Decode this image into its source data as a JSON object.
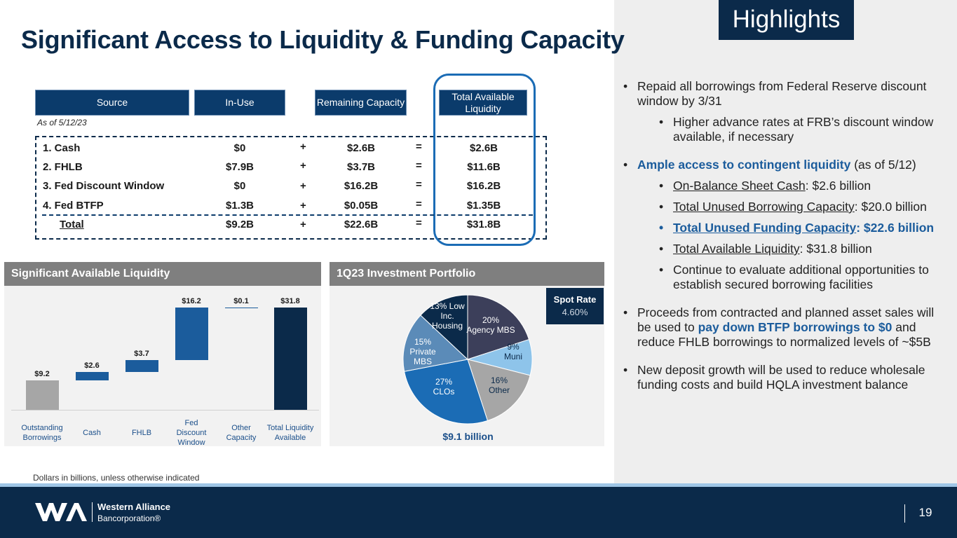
{
  "title": "Significant Access to Liquidity & Funding Capacity",
  "highlights_tag": "Highlights",
  "table": {
    "headers": [
      "Source",
      "In-Use",
      "Remaining Capacity",
      "Total Available Liquidity"
    ],
    "as_of": "As of 5/12/23",
    "rows": [
      {
        "label": "1.   Cash",
        "in_use": "$0",
        "op1": "+",
        "remaining": "$2.6B",
        "op2": "=",
        "total": "$2.6B"
      },
      {
        "label": "2.   FHLB",
        "in_use": "$7.9B",
        "op1": "+",
        "remaining": "$3.7B",
        "op2": "=",
        "total": "$11.6B"
      },
      {
        "label": "3.   Fed Discount Window",
        "in_use": "$0",
        "op1": "+",
        "remaining": "$16.2B",
        "op2": "=",
        "total": "$16.2B"
      },
      {
        "label": "4.   Fed BTFP",
        "in_use": "$1.3B",
        "op1": "+",
        "remaining": "$0.05B",
        "op2": "=",
        "total": "$1.35B"
      }
    ],
    "total_row": {
      "label": "Total",
      "in_use": "$9.2B",
      "op1": "+",
      "remaining": "$22.6B",
      "op2": "=",
      "total": "$31.8B"
    }
  },
  "liquidity_panel": {
    "header": "Significant Available Liquidity"
  },
  "portfolio_panel": {
    "header": "1Q23 Investment Portfolio",
    "spot_rate_label": "Spot Rate",
    "spot_rate_value": "4.60%",
    "total": "$9.1 billion"
  },
  "chart_data": [
    {
      "type": "bar",
      "subtype": "waterfall",
      "categories": [
        "Outstanding Borrowings",
        "Cash",
        "FHLB",
        "Fed Discount Window",
        "Other Capacity",
        "Total Liquidity Available"
      ],
      "values": [
        9.2,
        2.6,
        3.7,
        16.2,
        0.1,
        31.8
      ],
      "data_labels": [
        "$9.2",
        "$2.6",
        "$3.7",
        "$16.2",
        "$0.1",
        "$31.8"
      ],
      "colors": [
        "#a6a6a6",
        "#1b5c9c",
        "#1b5c9c",
        "#1b5c9c",
        "#1b5c9c",
        "#0b2a4a"
      ],
      "title": "",
      "xlabel": "",
      "ylabel": ""
    },
    {
      "type": "pie",
      "slices": [
        {
          "label": "20% Agency MBS",
          "value": 20,
          "color": "#3c3f5a"
        },
        {
          "label": "9% Muni",
          "value": 9,
          "color": "#8ec4ea"
        },
        {
          "label": "16% Other",
          "value": 16,
          "color": "#a6a6a6"
        },
        {
          "label": "27% CLOs",
          "value": 27,
          "color": "#1b6cb5"
        },
        {
          "label": "15% Private MBS",
          "value": 15,
          "color": "#5b8bb8"
        },
        {
          "label": "13% Low Inc. Housing",
          "value": 13,
          "color": "#0b2a4a"
        }
      ]
    }
  ],
  "footnote": "Dollars in billions, unless otherwise indicated",
  "footer": {
    "company": "Western Alliance",
    "company_sub": "Bancorporation®",
    "page": "19"
  },
  "bullets": {
    "b1": "Repaid all borrowings from Federal Reserve discount window by 3/31",
    "b1a": "Higher advance rates at FRB’s discount window available, if necessary",
    "b2_hl": "Ample access to contingent liquidity",
    "b2_rest": " (as of 5/12)",
    "b2a_ul": "On-Balance Sheet Cash",
    "b2a_rest": ": $2.6 billion",
    "b2b_ul": "Total Unused Borrowing Capacity",
    "b2b_rest": ": $20.0 billion",
    "b2c_ul": "Total Unused Funding Capacity",
    "b2c_rest": ": $22.6 billion",
    "b2d_ul": "Total Available Liquidity",
    "b2d_rest": ": $31.8 billion",
    "b2e": "Continue to evaluate additional opportunities to establish secured borrowing facilities",
    "b3_a": "Proceeds from contracted and planned asset sales will be used to ",
    "b3_hl": "pay down BTFP borrowings to $0",
    "b3_b": " and reduce FHLB borrowings to normalized levels of ~$5B",
    "b4": "New deposit growth will be used to reduce wholesale funding costs and build HQLA investment balance"
  }
}
